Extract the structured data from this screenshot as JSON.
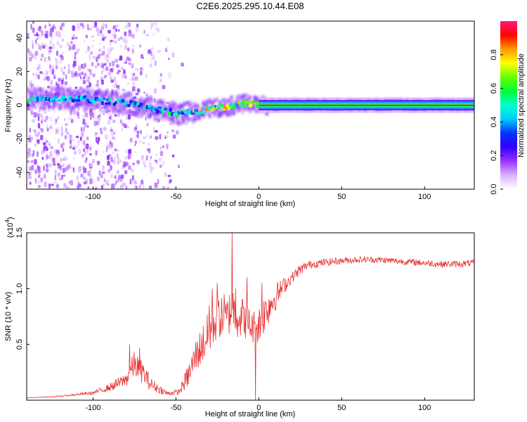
{
  "title": "C2E6.2025.295.10.44.E08",
  "chart_data": [
    {
      "type": "heatmap",
      "name": "spectrogram",
      "xlabel": "Height of straight line (km)",
      "ylabel": "Frequency (Hz)",
      "xlim": [
        -140,
        130
      ],
      "ylim": [
        -50,
        50
      ],
      "xticks": [
        -100,
        -50,
        0,
        50,
        100
      ],
      "yticks": [
        -40,
        -20,
        0,
        20,
        40
      ],
      "colorbar": {
        "label": "Normalized spectral amplitude",
        "range": [
          0,
          1
        ],
        "ticks": [
          0.0,
          0.2,
          0.4,
          0.6,
          0.8
        ],
        "tick_labels": [
          "0.0",
          "0.2",
          "0.4",
          "0.6",
          "0.8"
        ],
        "colors": [
          "#ffffff",
          "#d9b3ff",
          "#9933ff",
          "#3300ff",
          "#0033ff",
          "#00ccff",
          "#00ffcc",
          "#00ff33",
          "#66ff00",
          "#ffff00",
          "#ff9900",
          "#ff0000",
          "#ff1a75"
        ]
      },
      "signal_centerline": [
        [
          -140,
          4
        ],
        [
          -120,
          4
        ],
        [
          -100,
          3
        ],
        [
          -80,
          1
        ],
        [
          -70,
          -1
        ],
        [
          -60,
          -3
        ],
        [
          -50,
          -5
        ],
        [
          -45,
          -5
        ],
        [
          -40,
          -4
        ],
        [
          -30,
          -2
        ],
        [
          -20,
          -1
        ],
        [
          -10,
          1
        ],
        [
          0,
          0
        ],
        [
          20,
          0
        ],
        [
          50,
          0
        ],
        [
          100,
          0
        ],
        [
          130,
          0
        ]
      ],
      "noise_fade_height_km": -90
    },
    {
      "type": "line",
      "name": "snr",
      "xlabel": "Height of straight line (km)",
      "ylabel": "SNR (10 * v/v)",
      "y_multiplier": "(x10",
      "y_multiplier_exp": "4",
      "xlim": [
        -140,
        130
      ],
      "ylim": [
        0,
        1.5
      ],
      "xticks": [
        -100,
        -50,
        0,
        50,
        100
      ],
      "yticks": [
        0.5,
        1.0,
        1.5
      ],
      "ytick_labels": [
        "0.5",
        "1.0",
        "1.5"
      ],
      "color": "#e83030",
      "envelope": [
        [
          -140,
          0.02,
          0.02
        ],
        [
          -120,
          0.03,
          0.04
        ],
        [
          -100,
          0.05,
          0.08
        ],
        [
          -90,
          0.08,
          0.15
        ],
        [
          -80,
          0.12,
          0.25
        ],
        [
          -75,
          0.2,
          0.45
        ],
        [
          -70,
          0.15,
          0.35
        ],
        [
          -65,
          0.08,
          0.2
        ],
        [
          -55,
          0.04,
          0.08
        ],
        [
          -48,
          0.05,
          0.1
        ],
        [
          -42,
          0.12,
          0.35
        ],
        [
          -38,
          0.25,
          0.55
        ],
        [
          -32,
          0.35,
          0.75
        ],
        [
          -28,
          0.45,
          0.85
        ],
        [
          -25,
          0.55,
          0.95
        ],
        [
          -20,
          0.55,
          0.9
        ],
        [
          -16,
          0.6,
          1.05
        ],
        [
          -12,
          0.55,
          0.95
        ],
        [
          -8,
          0.55,
          0.9
        ],
        [
          -4,
          0.5,
          0.8
        ],
        [
          0,
          0.5,
          0.85
        ],
        [
          5,
          0.65,
          1.0
        ],
        [
          10,
          0.8,
          1.05
        ],
        [
          15,
          0.95,
          1.1
        ],
        [
          20,
          1.05,
          1.15
        ],
        [
          25,
          1.12,
          1.22
        ],
        [
          30,
          1.18,
          1.25
        ],
        [
          40,
          1.2,
          1.27
        ],
        [
          50,
          1.22,
          1.28
        ],
        [
          60,
          1.23,
          1.29
        ],
        [
          70,
          1.23,
          1.29
        ],
        [
          80,
          1.22,
          1.28
        ],
        [
          90,
          1.21,
          1.27
        ],
        [
          100,
          1.2,
          1.26
        ],
        [
          110,
          1.19,
          1.25
        ],
        [
          120,
          1.19,
          1.25
        ],
        [
          130,
          1.2,
          1.26
        ]
      ],
      "spikes": [
        [
          -78,
          0.5
        ],
        [
          -72,
          0.47
        ],
        [
          -30,
          0.85
        ],
        [
          -28,
          1.0
        ],
        [
          -25,
          1.05
        ],
        [
          -21,
          0.95
        ],
        [
          -16,
          1.5
        ],
        [
          -14,
          1.0
        ],
        [
          -10,
          0.9
        ],
        [
          -7,
          1.1
        ],
        [
          -2,
          0.0
        ],
        [
          2,
          1.05
        ]
      ]
    }
  ]
}
